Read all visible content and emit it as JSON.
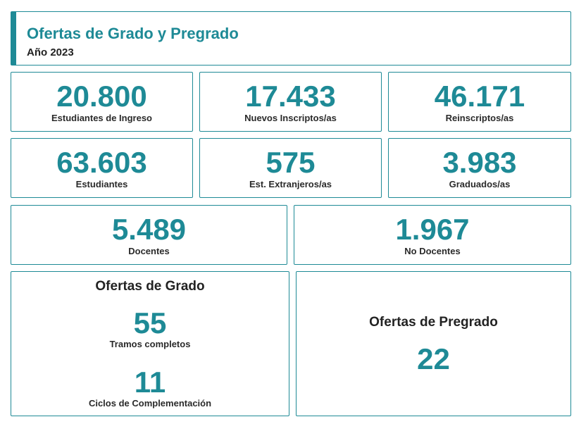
{
  "header": {
    "title": "Ofertas de Grado y Pregrado",
    "subtitle": "Año 2023"
  },
  "stats": [
    {
      "value": "20.800",
      "label": "Estudiantes de Ingreso"
    },
    {
      "value": "17.433",
      "label": "Nuevos Inscriptos/as"
    },
    {
      "value": "46.171",
      "label": "Reinscriptos/as"
    },
    {
      "value": "63.603",
      "label": "Estudiantes"
    },
    {
      "value": "575",
      "label": "Est. Extranjeros/as"
    },
    {
      "value": "3.983",
      "label": "Graduados/as"
    },
    {
      "value": "5.489",
      "label": "Docentes"
    },
    {
      "value": "1.967",
      "label": "No Docentes"
    }
  ],
  "grado": {
    "title": "Ofertas de Grado",
    "tramos_value": "55",
    "tramos_label": "Tramos completos",
    "ciclos_value": "11",
    "ciclos_label": "Ciclos de Complementación"
  },
  "pregrado": {
    "title": "Ofertas de Pregrado",
    "value": "22"
  },
  "colors": {
    "accent": "#1e8a96",
    "text": "#222222"
  }
}
